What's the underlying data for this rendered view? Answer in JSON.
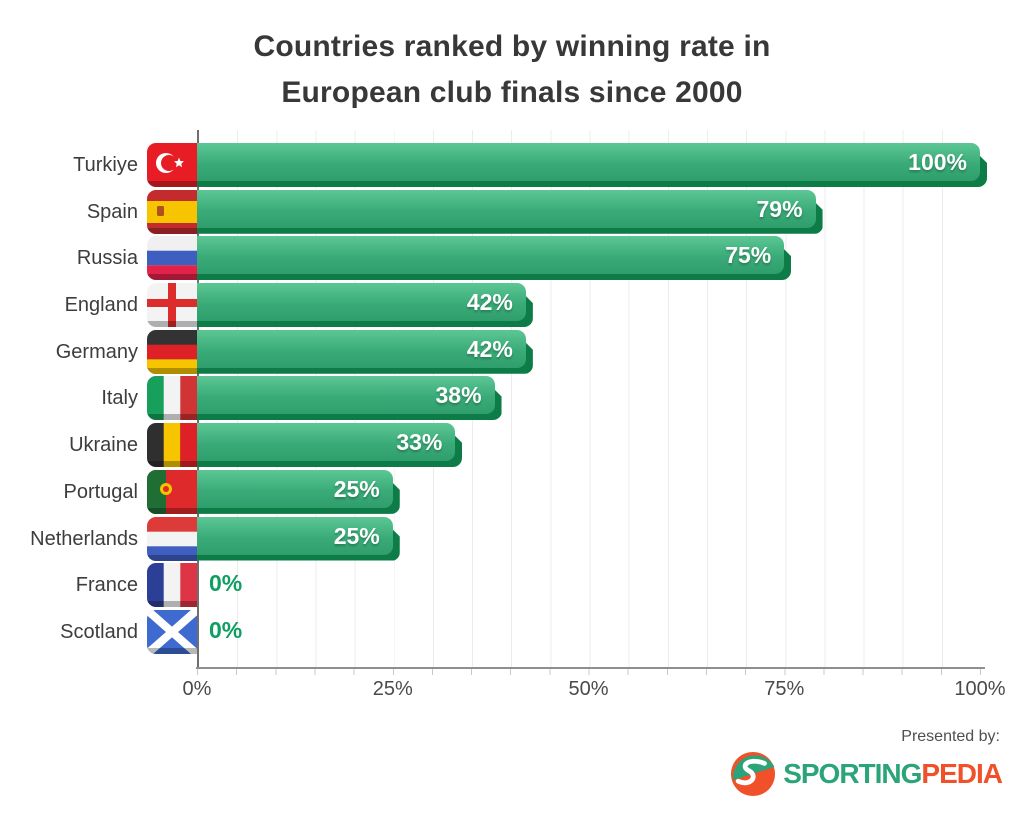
{
  "title": {
    "line1": "Countries ranked by winning rate in",
    "line2": "European club finals since 2000"
  },
  "chart_data": {
    "type": "bar",
    "orientation": "horizontal",
    "title": "Countries ranked by winning rate in European club finals since 2000",
    "categories": [
      "Turkiye",
      "Spain",
      "Russia",
      "England",
      "Germany",
      "Italy",
      "Ukraine",
      "Portugal",
      "Netherlands",
      "France",
      "Scotland"
    ],
    "values": [
      100,
      79,
      75,
      42,
      42,
      38,
      33,
      25,
      25,
      0,
      0
    ],
    "value_labels": [
      "100%",
      "79%",
      "75%",
      "42%",
      "42%",
      "38%",
      "33%",
      "25%",
      "25%",
      "0%",
      "0%"
    ],
    "flags": [
      "turkiye",
      "spain",
      "russia",
      "england",
      "germany",
      "italy",
      "ukraine",
      "portugal",
      "netherlands",
      "france",
      "scotland"
    ],
    "xlabel": "",
    "ylabel": "",
    "xlim": [
      0,
      100
    ],
    "x_tick_labels": [
      "0%",
      "25%",
      "50%",
      "75%",
      "100%"
    ],
    "grid": "vertical minor gridlines every 5%",
    "legend": "none",
    "colors": {
      "bar_main": "#3aab78",
      "bar_dark": "#0e7c46",
      "value_text": "#ffffff",
      "zero_value_text": "#0f9e60",
      "gridline": "#ececec",
      "zero_line": "#6f6f6f"
    }
  },
  "footer": {
    "presented_by": "Presented by:",
    "brand_part1": "SPORTING",
    "brand_part2": "PEDIA",
    "brand_green": "#2aa478",
    "brand_orange": "#f0512a"
  }
}
